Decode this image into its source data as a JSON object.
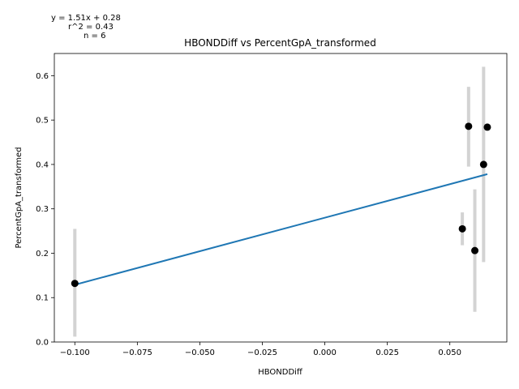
{
  "chart_data": {
    "type": "scatter",
    "title": "HBONDDiff vs PercentGpA_transformed",
    "xlabel": "HBONDDiff",
    "ylabel": "PercentGpA_transformed",
    "xlim": [
      -0.1082,
      0.0728
    ],
    "ylim": [
      0.0,
      0.65
    ],
    "x_ticks": [
      -0.1,
      -0.075,
      -0.05,
      -0.025,
      0.0,
      0.025,
      0.05
    ],
    "x_tick_labels": [
      "−0.100",
      "−0.075",
      "−0.050",
      "−0.025",
      "0.000",
      "0.025",
      "0.050"
    ],
    "y_ticks": [
      0.0,
      0.1,
      0.2,
      0.3,
      0.4,
      0.5,
      0.6
    ],
    "y_tick_labels": [
      "0.0",
      "0.1",
      "0.2",
      "0.3",
      "0.4",
      "0.5",
      "0.6"
    ],
    "points": [
      {
        "x": -0.1,
        "y": 0.132,
        "err_low": 0.012,
        "err_high": 0.255
      },
      {
        "x": 0.055,
        "y": 0.255,
        "err_low": 0.218,
        "err_high": 0.292
      },
      {
        "x": 0.0575,
        "y": 0.486,
        "err_low": 0.395,
        "err_high": 0.575
      },
      {
        "x": 0.06,
        "y": 0.206,
        "err_low": 0.068,
        "err_high": 0.344
      },
      {
        "x": 0.0635,
        "y": 0.4,
        "err_low": 0.18,
        "err_high": 0.62
      },
      {
        "x": 0.065,
        "y": 0.484,
        "err_low": 0.484,
        "err_high": 0.484
      }
    ],
    "fit": {
      "slope": 1.51,
      "intercept": 0.28,
      "x_range": [
        -0.1,
        0.065
      ]
    },
    "annotations": [
      "y = 1.51x + 0.28",
      "r^2 = 0.43",
      "n = 6"
    ],
    "grid": false,
    "colors": {
      "points": "#000000",
      "errorbars": "#d3d3d3",
      "fit_line": "#1f77b4"
    }
  }
}
